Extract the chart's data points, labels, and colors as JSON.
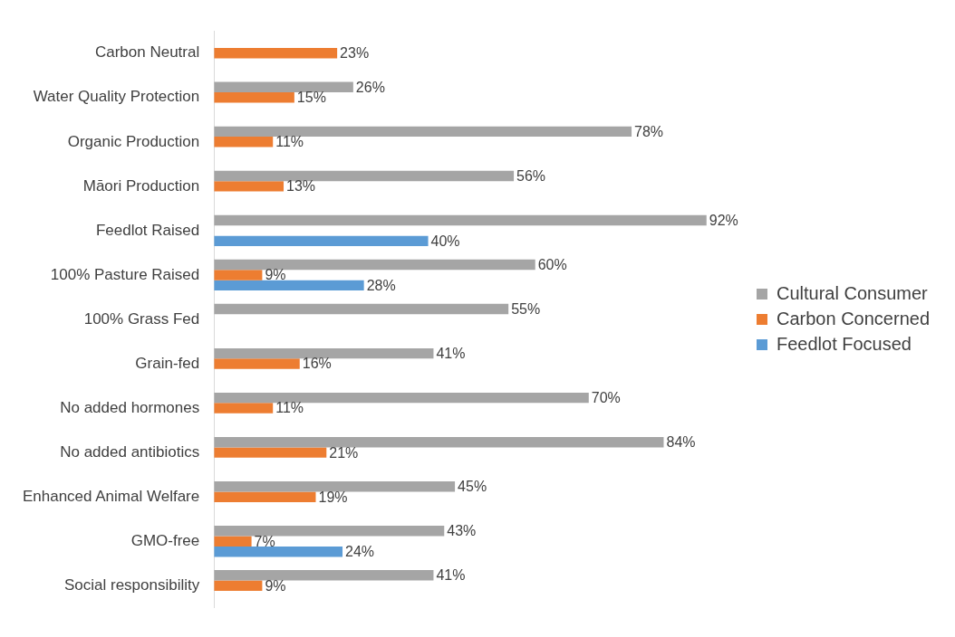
{
  "chart_data": {
    "type": "bar",
    "orientation": "horizontal",
    "categories": [
      "Carbon Neutral",
      "Water Quality Protection",
      "Organic Production",
      "Māori Production",
      "Feedlot Raised",
      "100% Pasture Raised",
      "100% Grass Fed",
      "Grain-fed",
      "No added hormones",
      "No added antibiotics",
      "Enhanced Animal Welfare",
      "GMO-free",
      "Social responsibility"
    ],
    "series": [
      {
        "name": "Cultural Consumer",
        "color": "#a5a5a5",
        "values": [
          null,
          26,
          78,
          56,
          92,
          60,
          55,
          41,
          70,
          84,
          45,
          43,
          41
        ],
        "value_labels": [
          null,
          "26%",
          "78%",
          "56%",
          "92%",
          "60%",
          "55%",
          "41%",
          "70%",
          "84%",
          "45%",
          "43%",
          "41%"
        ]
      },
      {
        "name": "Carbon Concerned",
        "color": "#ed7d31",
        "values": [
          23,
          15,
          11,
          13,
          null,
          9,
          null,
          16,
          11,
          21,
          19,
          7,
          9
        ],
        "value_labels": [
          "23%",
          "15%",
          "11%",
          "13%",
          null,
          "9%",
          null,
          "16%",
          "11%",
          "21%",
          "19%",
          "7%",
          "9%"
        ]
      },
      {
        "name": "Feedlot Focused",
        "color": "#5b9bd5",
        "values": [
          null,
          null,
          null,
          null,
          40,
          28,
          null,
          null,
          null,
          null,
          null,
          24,
          null
        ],
        "value_labels": [
          null,
          null,
          null,
          null,
          "40%",
          "28%",
          null,
          null,
          null,
          null,
          null,
          "24%",
          null
        ]
      }
    ],
    "tick_labels": "y",
    "grid": false,
    "legend": "right"
  }
}
